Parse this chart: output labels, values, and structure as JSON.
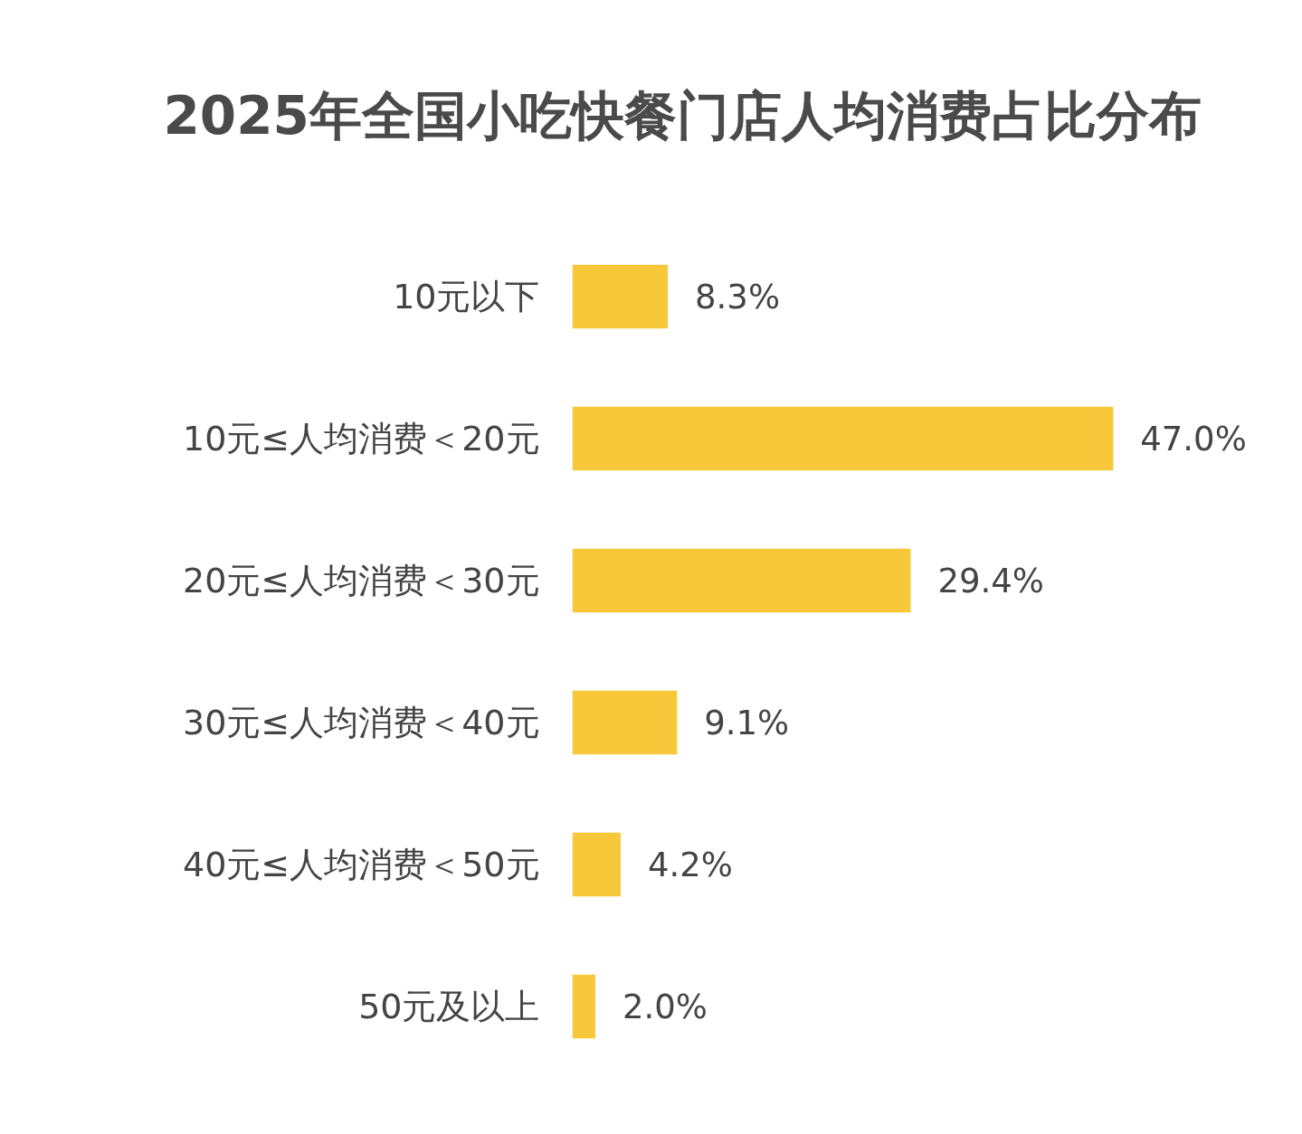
{
  "chart_data": {
    "type": "bar",
    "orientation": "horizontal",
    "title": "2025年全国小吃快餐门店人均消费占比分布",
    "categories": [
      "10元以下",
      "10元≤人均消费＜20元",
      "20元≤人均消费＜30元",
      "30元≤人均消费＜40元",
      "40元≤人均消费＜50元",
      "50元及以上"
    ],
    "values": [
      8.3,
      47.0,
      29.4,
      9.1,
      4.2,
      2.0
    ],
    "value_labels": [
      "8.3%",
      "47.0%",
      "29.4%",
      "9.1%",
      "4.2%",
      "2.0%"
    ],
    "color": "#f7c83a",
    "tick_labels": "y"
  }
}
